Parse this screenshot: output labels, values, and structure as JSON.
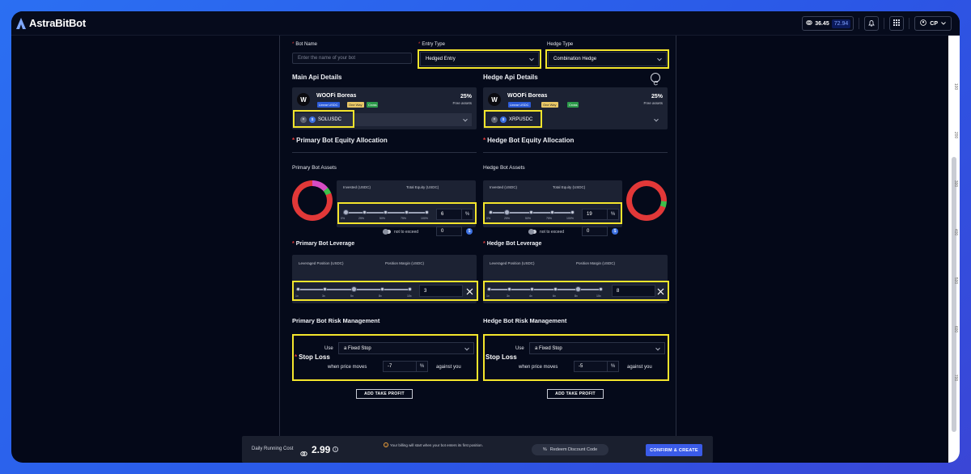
{
  "app": {
    "logo_text": "AstraBitBot"
  },
  "topbar": {
    "credits": "36.45",
    "credits_alt": "72.94",
    "user_initials": "CP"
  },
  "form": {
    "bot_name_label": "Bot Name",
    "bot_name_placeholder": "Enter the name of your bot",
    "entry_type_label": "Entry Type",
    "entry_type_value": "Hedged Entry",
    "hedge_type_label": "Hedge Type",
    "hedge_type_value": "Combination Hedge"
  },
  "main_api": {
    "title": "Main Api Details",
    "account_name": "WOOFi Boreas",
    "badges": [
      "Linear USDC",
      "One Way",
      "Cross"
    ],
    "percent": "25%",
    "free_label": "Free assets",
    "pair": "SOLUSDC"
  },
  "hedge_api": {
    "title": "Hedge Api Details",
    "account_name": "WOOFi Boreas",
    "badges": [
      "Linear USDC",
      "One Way",
      "Cross"
    ],
    "percent": "25%",
    "free_label": "Free assets",
    "pair": "XRPUSDC"
  },
  "primary": {
    "equity_title": "Primary Bot Equity Allocation",
    "assets_title": "Primary Bot Assets",
    "invested_label": "Invested (USDC)",
    "total_label": "Total Equity (USDC)",
    "ticks": [
      "0%",
      "25%",
      "50%",
      "75%",
      "100%"
    ],
    "allocation": "6",
    "pct_symbol": "%",
    "not_exceed_label": "not to exceed",
    "not_exceed_value": "0",
    "leverage_title": "Primary Bot Leverage",
    "lev_pos_label": "Leveraged Position (USDC)",
    "margin_label": "Position Margin (USDC)",
    "lev_ticks": [
      "1x",
      "3x",
      "5x",
      "6x",
      "8x",
      "10x"
    ],
    "leverage": "3",
    "risk_title": "Primary Bot Risk Management",
    "use_label": "Use",
    "stop_type": "a Fixed Stop",
    "stop_loss_label": "Stop Loss",
    "when_label": "when price moves",
    "stop_value": "-7",
    "against_label": "against you",
    "take_profit_btn": "ADD TAKE PROFIT"
  },
  "hedge": {
    "equity_title": "Hedge Bot Equity Allocation",
    "assets_title": "Hedge Bot Assets",
    "invested_label": "Invested (USDC)",
    "total_label": "Total Equity (USDC)",
    "ticks": [
      "0%",
      "25%",
      "50%",
      "75%",
      "100%"
    ],
    "allocation": "19",
    "pct_symbol": "%",
    "not_exceed_label": "not to exceed",
    "not_exceed_value": "0",
    "leverage_title": "Hedge Bot Leverage",
    "lev_pos_label": "Leveraged Position (USDC)",
    "margin_label": "Position Margin (USDC)",
    "lev_ticks": [
      "1x",
      "3x",
      "4x",
      "6x",
      "8x",
      "10x"
    ],
    "leverage": "8",
    "risk_title": "Hedge Bot Risk Management",
    "use_label": "Use",
    "stop_type": "a Fixed Stop",
    "stop_loss_label": "Stop Loss",
    "when_label": "when price moves",
    "stop_value": "-5",
    "against_label": "against you",
    "take_profit_btn": "ADD TAKE PROFIT"
  },
  "footer": {
    "cost_label": "Daily Running Cost",
    "cost_value": "2.99",
    "billing_note": "Your billing will start when your bot enters its first position.",
    "redeem_label": "Redeem Discount Code",
    "confirm_label": "CONFIRM & CREATE"
  },
  "ruler": [
    "100",
    "200",
    "300",
    "400",
    "500",
    "600",
    "700"
  ],
  "colors": {
    "highlight": "#f4e52c",
    "accent": "#3a5be8",
    "donut_red": "#e23838",
    "donut_pink": "#d64cc4",
    "donut_green": "#3fbf4a"
  }
}
